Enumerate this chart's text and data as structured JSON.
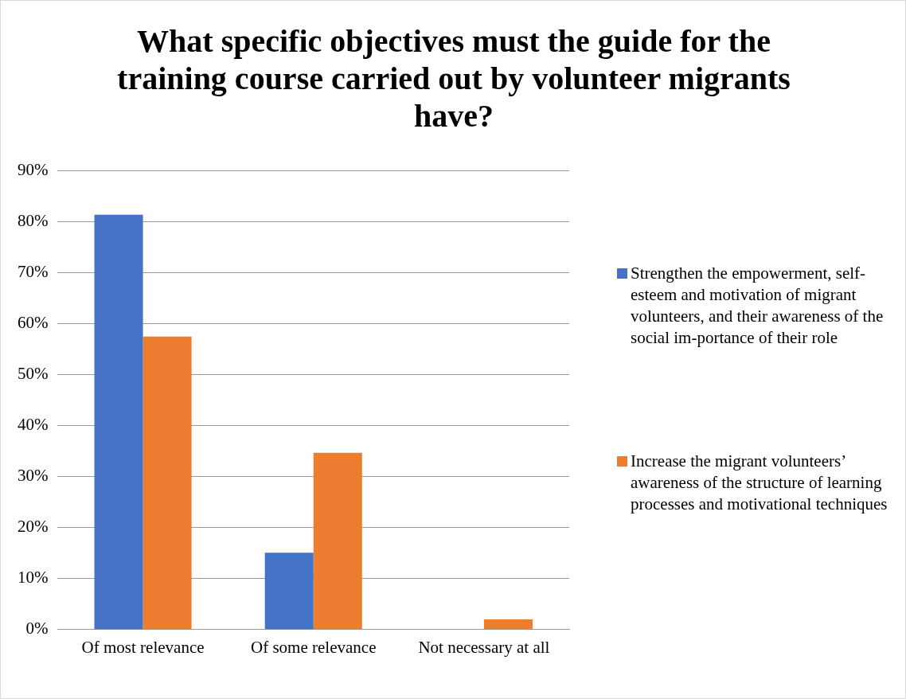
{
  "chart_data": {
    "type": "bar",
    "title": "What specific objectives must the guide for the training course carried out by volunteer migrants have?",
    "categories": [
      "Of most relevance",
      "Of some relevance",
      "Not necessary at all"
    ],
    "series": [
      {
        "name": "Strengthen the empowerment, self-esteem and motivation of migrant volunteers, and their awareness of the social im-portance of their role",
        "color": "#4472c4",
        "values": [
          81.4,
          15.1,
          0
        ]
      },
      {
        "name": "Increase the migrant volunteers’ awareness of the structure of learning processes and motivational techniques",
        "color": "#ed7d31",
        "values": [
          57.5,
          34.7,
          2.0
        ]
      }
    ],
    "ylim": [
      0,
      90
    ],
    "yticks": [
      {
        "value": 0,
        "label": "0%"
      },
      {
        "value": 10,
        "label": "10%"
      },
      {
        "value": 20,
        "label": "20%"
      },
      {
        "value": 30,
        "label": "30%"
      },
      {
        "value": 40,
        "label": "40%"
      },
      {
        "value": 50,
        "label": "50%"
      },
      {
        "value": 60,
        "label": "60%"
      },
      {
        "value": 70,
        "label": "70%"
      },
      {
        "value": 80,
        "label": "80%"
      },
      {
        "value": 90,
        "label": "90%"
      }
    ],
    "grid": "y",
    "legend": "right"
  }
}
